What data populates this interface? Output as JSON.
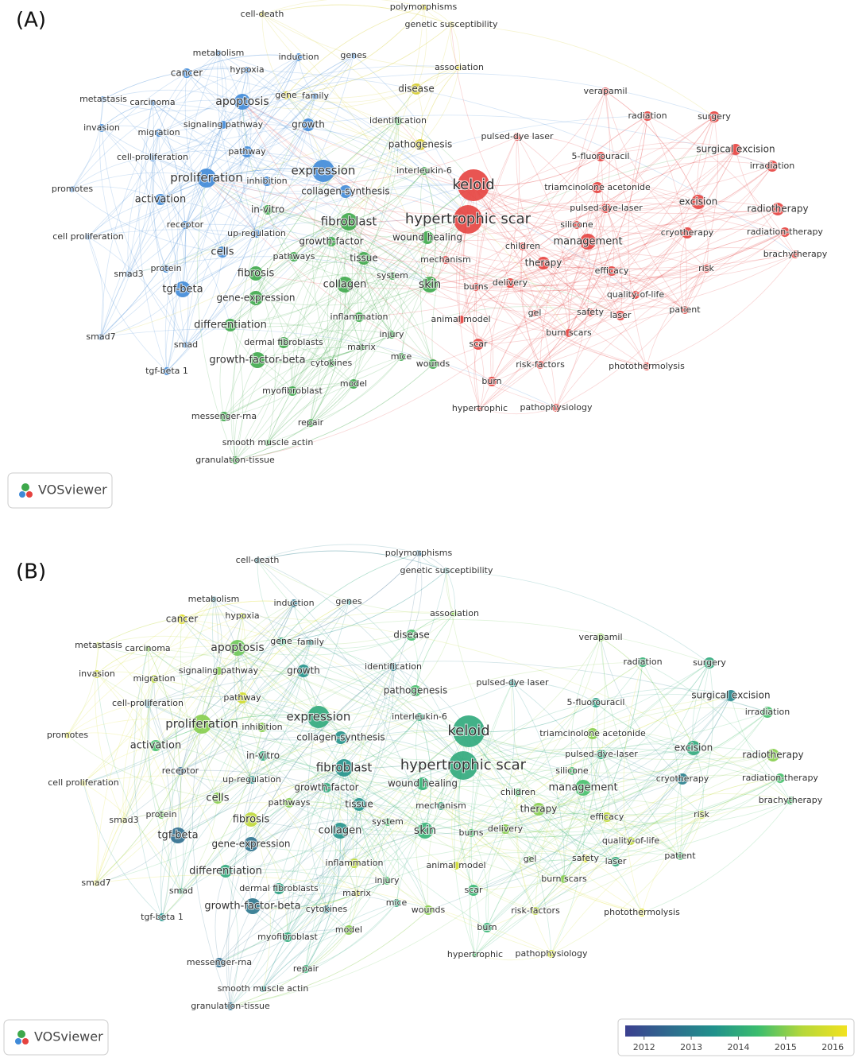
{
  "panels": [
    {
      "label": "(A)",
      "logo": "VOSviewer"
    },
    {
      "label": "(B)",
      "logo": "VOSviewer",
      "colorbar": {
        "range": [
          2011.6,
          2016.3
        ],
        "ticks": [
          2012,
          2013,
          2014,
          2015,
          2016
        ]
      }
    }
  ],
  "cluster_colors": {
    "red": "#e5423f",
    "green": "#3ea84b",
    "blue": "#3f8ad8",
    "yellow": "#d6cc2c"
  },
  "nodes": [
    {
      "label": "cell-death",
      "cluster": "yellow",
      "year": 2013
    },
    {
      "label": "polymorphisms",
      "cluster": "yellow",
      "year": 2012.5
    },
    {
      "label": "genetic susceptibility",
      "cluster": "yellow",
      "year": 2013.5
    },
    {
      "label": "association",
      "cluster": "yellow",
      "year": 2015
    },
    {
      "label": "disease",
      "cluster": "yellow",
      "year": 2014.5
    },
    {
      "label": "gene",
      "cluster": "yellow",
      "year": 2014
    },
    {
      "label": "family",
      "cluster": "blue",
      "year": 2013.5
    },
    {
      "label": "identification",
      "cluster": "green",
      "year": 2013
    },
    {
      "label": "pathogenesis",
      "cluster": "yellow",
      "year": 2014.5
    },
    {
      "label": "metabolism",
      "cluster": "blue",
      "year": 2013
    },
    {
      "label": "induction",
      "cluster": "blue",
      "year": 2012.8
    },
    {
      "label": "genes",
      "cluster": "blue",
      "year": 2013.5
    },
    {
      "label": "hypoxia",
      "cluster": "blue",
      "year": 2015.5
    },
    {
      "label": "cancer",
      "cluster": "blue",
      "year": 2016
    },
    {
      "label": "metastasis",
      "cluster": "blue",
      "year": 2015.5
    },
    {
      "label": "carcinoma",
      "cluster": "blue",
      "year": 2015
    },
    {
      "label": "apoptosis",
      "cluster": "blue",
      "year": 2014.8
    },
    {
      "label": "invasion",
      "cluster": "blue",
      "year": 2015.8
    },
    {
      "label": "signaling pathway",
      "cluster": "blue",
      "year": 2015
    },
    {
      "label": "growth",
      "cluster": "blue",
      "year": 2013.5
    },
    {
      "label": "migration",
      "cluster": "blue",
      "year": 2015.5
    },
    {
      "label": "pathway",
      "cluster": "blue",
      "year": 2015.8
    },
    {
      "label": "cell-proliferation",
      "cluster": "blue",
      "year": 2013
    },
    {
      "label": "expression",
      "cluster": "blue",
      "year": 2014
    },
    {
      "label": "proliferation",
      "cluster": "blue",
      "year": 2015
    },
    {
      "label": "inhibition",
      "cluster": "blue",
      "year": 2015
    },
    {
      "label": "promotes",
      "cluster": "blue",
      "year": 2016
    },
    {
      "label": "collagen-synthesis",
      "cluster": "blue",
      "year": 2013.5
    },
    {
      "label": "activation",
      "cluster": "blue",
      "year": 2014.5
    },
    {
      "label": "in-vitro",
      "cluster": "green",
      "year": 2014
    },
    {
      "label": "receptor",
      "cluster": "blue",
      "year": 2012.5
    },
    {
      "label": "cell proliferation",
      "cluster": "blue",
      "year": 2016
    },
    {
      "label": "up-regulation",
      "cluster": "blue",
      "year": 2013.5
    },
    {
      "label": "cells",
      "cluster": "blue",
      "year": 2015
    },
    {
      "label": "protein",
      "cluster": "blue",
      "year": 2014.8
    },
    {
      "label": "smad3",
      "cluster": "blue",
      "year": 2015.8
    },
    {
      "label": "tgf-beta",
      "cluster": "blue",
      "year": 2012.6
    },
    {
      "label": "smad7",
      "cluster": "blue",
      "year": 2016
    },
    {
      "label": "smad",
      "cluster": "blue",
      "year": 2014.2
    },
    {
      "label": "tgf-beta 1",
      "cluster": "blue",
      "year": 2013.5
    },
    {
      "label": "fibroblast",
      "cluster": "green",
      "year": 2013.5
    },
    {
      "label": "growth-factor",
      "cluster": "green",
      "year": 2014
    },
    {
      "label": "wound healing",
      "cluster": "green",
      "year": 2014.2
    },
    {
      "label": "pathways",
      "cluster": "green",
      "year": 2015
    },
    {
      "label": "tissue",
      "cluster": "green",
      "year": 2013.5
    },
    {
      "label": "fibrosis",
      "cluster": "green",
      "year": 2015.5
    },
    {
      "label": "collagen",
      "cluster": "green",
      "year": 2013.5
    },
    {
      "label": "skin",
      "cluster": "green",
      "year": 2014.2
    },
    {
      "label": "system",
      "cluster": "green",
      "year": 2014.5
    },
    {
      "label": "gene-expression",
      "cluster": "green",
      "year": 2012.7
    },
    {
      "label": "differentiation",
      "cluster": "green",
      "year": 2014
    },
    {
      "label": "inflammation",
      "cluster": "green",
      "year": 2015.5
    },
    {
      "label": "dermal fibroblasts",
      "cluster": "green",
      "year": 2013.8
    },
    {
      "label": "matrix",
      "cluster": "green",
      "year": 2016
    },
    {
      "label": "injury",
      "cluster": "green",
      "year": 2014.5
    },
    {
      "label": "growth-factor-beta",
      "cluster": "green",
      "year": 2012.8
    },
    {
      "label": "cytokines",
      "cluster": "green",
      "year": 2013
    },
    {
      "label": "mice",
      "cluster": "green",
      "year": 2014
    },
    {
      "label": "wounds",
      "cluster": "green",
      "year": 2015
    },
    {
      "label": "model",
      "cluster": "green",
      "year": 2015
    },
    {
      "label": "myofibroblast",
      "cluster": "green",
      "year": 2014
    },
    {
      "label": "messenger-rna",
      "cluster": "green",
      "year": 2012.6
    },
    {
      "label": "repair",
      "cluster": "green",
      "year": 2014.2
    },
    {
      "label": "smooth muscle actin",
      "cluster": "green",
      "year": 2013.5
    },
    {
      "label": "granulation-tissue",
      "cluster": "green",
      "year": 2012.7
    },
    {
      "label": "interleukin-6",
      "cluster": "green",
      "year": 2014
    },
    {
      "label": "mechanism",
      "cluster": "red",
      "year": 2014
    },
    {
      "label": "keloid",
      "cluster": "red",
      "year": 2014
    },
    {
      "label": "hypertrophic scar",
      "cluster": "red",
      "year": 2014
    },
    {
      "label": "verapamil",
      "cluster": "red",
      "year": 2015
    },
    {
      "label": "radiation",
      "cluster": "red",
      "year": 2014.2
    },
    {
      "label": "surgery",
      "cluster": "red",
      "year": 2014
    },
    {
      "label": "pulsed-dye laser",
      "cluster": "red",
      "year": 2013.5
    },
    {
      "label": "5-fluorouracil",
      "cluster": "red",
      "year": 2013.8
    },
    {
      "label": "surgical excision",
      "cluster": "red",
      "year": 2013.2
    },
    {
      "label": "irradiation",
      "cluster": "red",
      "year": 2014.5
    },
    {
      "label": "triamcinolone acetonide",
      "cluster": "red",
      "year": 2015
    },
    {
      "label": "pulsed-dye-laser",
      "cluster": "red",
      "year": 2014
    },
    {
      "label": "excision",
      "cluster": "red",
      "year": 2014
    },
    {
      "label": "radiotherapy",
      "cluster": "red",
      "year": 2015
    },
    {
      "label": "silicone",
      "cluster": "red",
      "year": 2014.5
    },
    {
      "label": "cryotherapy",
      "cluster": "red",
      "year": 2013
    },
    {
      "label": "radiation-therapy",
      "cluster": "red",
      "year": 2014.5
    },
    {
      "label": "children",
      "cluster": "red",
      "year": 2014.5
    },
    {
      "label": "management",
      "cluster": "red",
      "year": 2014.5
    },
    {
      "label": "brachytherapy",
      "cluster": "red",
      "year": 2014.5
    },
    {
      "label": "therapy",
      "cluster": "red",
      "year": 2015
    },
    {
      "label": "efficacy",
      "cluster": "red",
      "year": 2015.5
    },
    {
      "label": "risk",
      "cluster": "red",
      "year": 2015.5
    },
    {
      "label": "delivery",
      "cluster": "red",
      "year": 2015
    },
    {
      "label": "burns",
      "cluster": "red",
      "year": 2014.5
    },
    {
      "label": "quality-of-life",
      "cluster": "red",
      "year": 2015.5
    },
    {
      "label": "patient",
      "cluster": "red",
      "year": 2014.5
    },
    {
      "label": "gel",
      "cluster": "red",
      "year": 2014.8
    },
    {
      "label": "safety",
      "cluster": "red",
      "year": 2016
    },
    {
      "label": "laser",
      "cluster": "red",
      "year": 2014
    },
    {
      "label": "animal model",
      "cluster": "red",
      "year": 2015.8
    },
    {
      "label": "burn scars",
      "cluster": "red",
      "year": 2015
    },
    {
      "label": "scar",
      "cluster": "red",
      "year": 2014.3
    },
    {
      "label": "risk-factors",
      "cluster": "red",
      "year": 2015.5
    },
    {
      "label": "photothermolysis",
      "cluster": "red",
      "year": 2016
    },
    {
      "label": "burn",
      "cluster": "red",
      "year": 2014.2
    },
    {
      "label": "hypertrophic",
      "cluster": "red",
      "year": 2014.5
    },
    {
      "label": "pathophysiology",
      "cluster": "red",
      "year": 2015.8
    }
  ]
}
